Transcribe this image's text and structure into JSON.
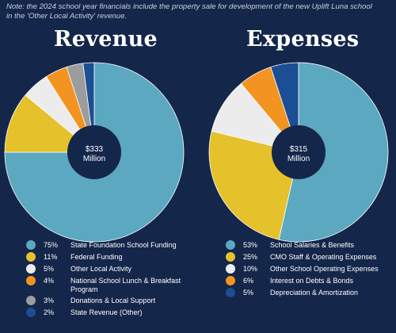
{
  "note": "Note: the 2024 school year financials include the property sale for development of the new Uplift Luna school in the 'Other Local Activity' revenue.",
  "chart_data": [
    {
      "type": "pie",
      "title": "Revenue",
      "center_label": {
        "line1": "$333",
        "line2": "Million"
      },
      "categories": [
        "State Foundation School Funding",
        "Federal Funding",
        "Other Local Activity",
        "National School Lunch & Breakfast Program",
        "Donations & Local Support",
        "State Revenue (Other)"
      ],
      "values": [
        75,
        11,
        5,
        4,
        3,
        2
      ],
      "value_labels": [
        "75%",
        "11%",
        "5%",
        "4%",
        "3%",
        "2%"
      ],
      "colors": [
        "#5ba8c0",
        "#e5c12c",
        "#ececec",
        "#f39321",
        "#9c9c9c",
        "#1b4e93"
      ],
      "legend_position": "bottom"
    },
    {
      "type": "pie",
      "title": "Expenses",
      "center_label": {
        "line1": "$315",
        "line2": "Million"
      },
      "categories": [
        "School Salaries & Benefits",
        "CMO Staff & Operating Expenses",
        "Other School Operating Expenses",
        "Interest  on Debts & Bonds",
        "Depreciation & Amortization"
      ],
      "values": [
        53,
        25,
        10,
        6,
        5
      ],
      "value_labels": [
        "53%",
        "25%",
        "10%",
        "6%",
        "5%"
      ],
      "colors": [
        "#5ba8c0",
        "#e5c12c",
        "#ececec",
        "#f39321",
        "#1b4e93"
      ],
      "legend_position": "bottom"
    }
  ]
}
